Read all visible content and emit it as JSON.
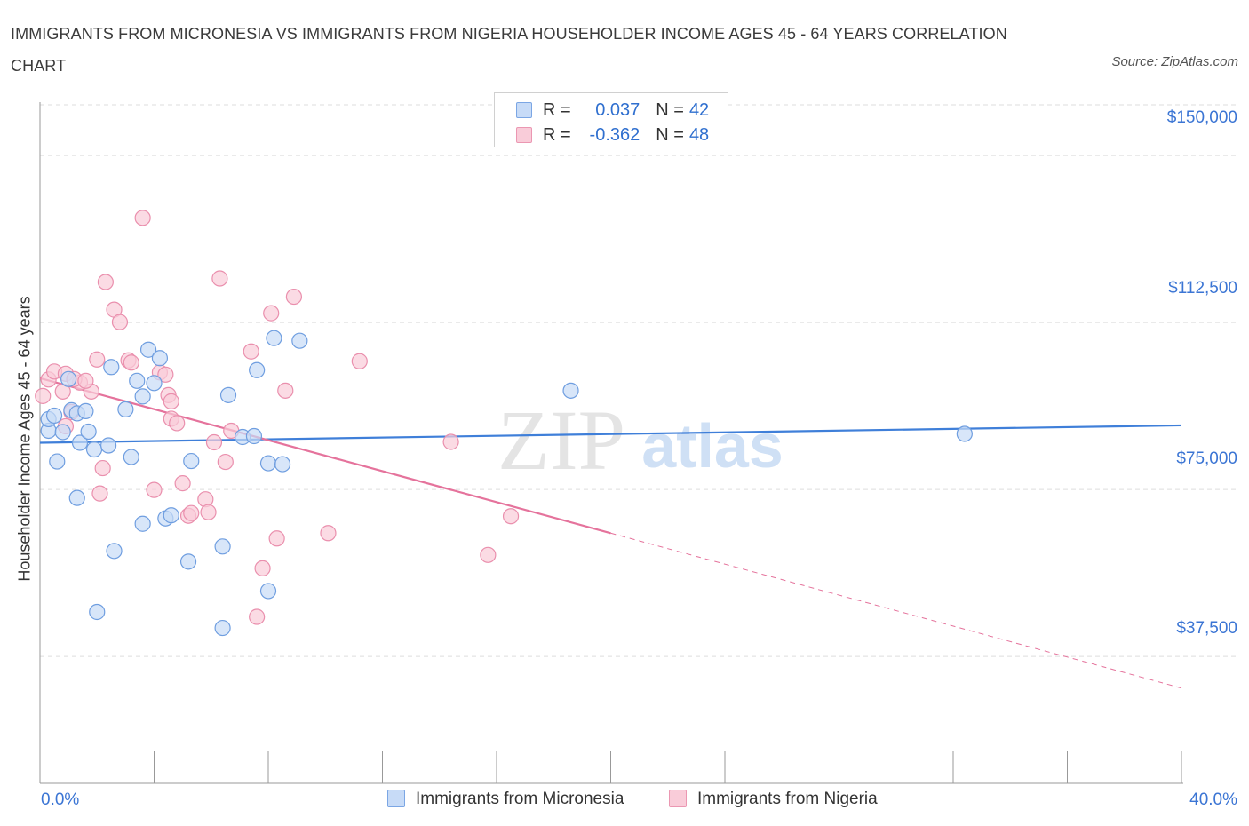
{
  "title": "IMMIGRANTS FROM MICRONESIA VS IMMIGRANTS FROM NIGERIA HOUSEHOLDER INCOME AGES 45 - 64 YEARS CORRELATION CHART",
  "source": "Source: ZipAtlas.com",
  "watermark": {
    "zip": "ZIP",
    "atlas": "atlas"
  },
  "legend": {
    "r_label": "R =",
    "n_label": "N =",
    "series": [
      {
        "r": "0.037",
        "n": "42",
        "color": "#7ba6e4"
      },
      {
        "r": "-0.362",
        "n": "48",
        "color": "#eb97b2"
      }
    ]
  },
  "colors": {
    "blue": "#3f7fd9",
    "pink": "#e5739c",
    "blue_fill": "#c7dbf7",
    "pink_fill": "#f9ccd9",
    "grid": "#dddddd",
    "tick_text": "#3b75d4"
  },
  "chart_data": {
    "type": "scatter",
    "title": "IMMIGRANTS FROM MICRONESIA VS IMMIGRANTS FROM NIGERIA HOUSEHOLDER INCOME AGES 45 - 64 YEARS CORRELATION CHART",
    "xlabel": "",
    "ylabel": "Householder Income Ages 45 - 64 years",
    "xlim": [
      0,
      40
    ],
    "ylim": [
      9000,
      162000
    ],
    "x_tick_labels": [
      {
        "x": 0,
        "label": "0.0%"
      },
      {
        "x": 40,
        "label": "40.0%"
      }
    ],
    "y_ticks": [
      {
        "value": 37500,
        "label": "$37,500"
      },
      {
        "value": 75000,
        "label": "$75,000"
      },
      {
        "value": 112500,
        "label": "$112,500"
      },
      {
        "value": 150000,
        "label": "$150,000"
      }
    ],
    "series": [
      {
        "name": "Immigrants from Micronesia",
        "color": "#3f7fd9",
        "trend": {
          "x0": 0,
          "y0": 85500,
          "x1": 40,
          "y1": 89400,
          "solid_until": 40
        },
        "points": [
          [
            0.3,
            88200
          ],
          [
            0.3,
            90800
          ],
          [
            0.5,
            91600
          ],
          [
            0.8,
            87900
          ],
          [
            0.6,
            81300
          ],
          [
            1.0,
            99800
          ],
          [
            1.1,
            92800
          ],
          [
            1.3,
            92100
          ],
          [
            1.6,
            92600
          ],
          [
            1.4,
            85500
          ],
          [
            1.7,
            88000
          ],
          [
            1.9,
            84000
          ],
          [
            2.4,
            84900
          ],
          [
            2.5,
            102500
          ],
          [
            3.0,
            93000
          ],
          [
            3.2,
            82300
          ],
          [
            3.4,
            99400
          ],
          [
            3.6,
            95900
          ],
          [
            3.8,
            106400
          ],
          [
            4.0,
            98900
          ],
          [
            4.2,
            104500
          ],
          [
            4.4,
            68500
          ],
          [
            4.6,
            69200
          ],
          [
            5.3,
            81400
          ],
          [
            5.2,
            58800
          ],
          [
            6.4,
            62200
          ],
          [
            6.6,
            96200
          ],
          [
            7.1,
            86800
          ],
          [
            7.5,
            87000
          ],
          [
            7.6,
            101800
          ],
          [
            8.0,
            52200
          ],
          [
            8.0,
            80900
          ],
          [
            8.2,
            109000
          ],
          [
            8.5,
            80700
          ],
          [
            9.1,
            108400
          ],
          [
            3.6,
            67300
          ],
          [
            2.6,
            61200
          ],
          [
            2.0,
            47500
          ],
          [
            6.4,
            43900
          ],
          [
            1.3,
            73100
          ],
          [
            18.6,
            97200
          ],
          [
            32.4,
            87500
          ]
        ]
      },
      {
        "name": "Immigrants from Nigeria",
        "color": "#e5739c",
        "trend": {
          "x0": 0,
          "y0": 100000,
          "x1": 40,
          "y1": 30400,
          "solid_until": 20
        },
        "points": [
          [
            0.1,
            96000
          ],
          [
            0.3,
            99700
          ],
          [
            0.5,
            101500
          ],
          [
            0.9,
            101000
          ],
          [
            1.4,
            99000
          ],
          [
            0.8,
            97000
          ],
          [
            1.8,
            97000
          ],
          [
            1.2,
            99800
          ],
          [
            0.9,
            89200
          ],
          [
            1.1,
            92400
          ],
          [
            2.3,
            121600
          ],
          [
            2.6,
            115400
          ],
          [
            2.8,
            112600
          ],
          [
            3.1,
            104000
          ],
          [
            3.2,
            103500
          ],
          [
            2.0,
            104200
          ],
          [
            3.6,
            136000
          ],
          [
            4.2,
            101300
          ],
          [
            4.4,
            100800
          ],
          [
            4.5,
            96200
          ],
          [
            4.6,
            94800
          ],
          [
            4.6,
            90900
          ],
          [
            4.8,
            89900
          ],
          [
            4.0,
            74900
          ],
          [
            5.0,
            76400
          ],
          [
            5.2,
            69100
          ],
          [
            5.3,
            69700
          ],
          [
            5.8,
            72800
          ],
          [
            5.9,
            69900
          ],
          [
            6.1,
            85600
          ],
          [
            6.3,
            122400
          ],
          [
            6.5,
            81200
          ],
          [
            6.7,
            88200
          ],
          [
            7.4,
            106000
          ],
          [
            8.1,
            114600
          ],
          [
            8.3,
            64000
          ],
          [
            8.6,
            97200
          ],
          [
            8.9,
            118300
          ],
          [
            10.1,
            65200
          ],
          [
            11.2,
            103800
          ],
          [
            7.8,
            57300
          ],
          [
            7.6,
            46400
          ],
          [
            14.4,
            85700
          ],
          [
            15.7,
            60300
          ],
          [
            16.5,
            69000
          ],
          [
            2.2,
            79800
          ],
          [
            2.1,
            74100
          ],
          [
            1.6,
            99400
          ]
        ]
      }
    ]
  },
  "x_axis": {
    "left_label": "0.0%",
    "right_label": "40.0%"
  },
  "bottom_legend": [
    "Immigrants from Micronesia",
    "Immigrants from Nigeria"
  ]
}
